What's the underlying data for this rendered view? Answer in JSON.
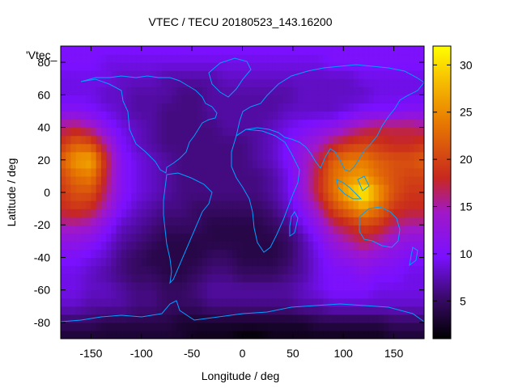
{
  "chart_data": {
    "type": "heatmap",
    "title": "VTEC / TECU 20180523_143.16200",
    "xlabel": "Longitude / deg",
    "ylabel": "Latitude / deg",
    "series_key": "'Vtec_",
    "xlim": [
      -180,
      180
    ],
    "ylim": [
      -90,
      90
    ],
    "zlim": [
      1,
      32
    ],
    "x_ticks": [
      -150,
      -100,
      -50,
      0,
      50,
      100,
      150
    ],
    "y_ticks": [
      -80,
      -60,
      -40,
      -20,
      0,
      20,
      40,
      60,
      80
    ],
    "colorbar_ticks": [
      5,
      10,
      15,
      20,
      25,
      30
    ],
    "x": [
      -180,
      -165,
      -150,
      -135,
      -120,
      -105,
      -90,
      -75,
      -60,
      -45,
      -30,
      -15,
      0,
      15,
      30,
      45,
      60,
      75,
      90,
      105,
      120,
      135,
      150,
      165,
      180
    ],
    "y": [
      -90,
      -80,
      -70,
      -60,
      -50,
      -40,
      -30,
      -20,
      -10,
      0,
      10,
      20,
      30,
      40,
      50,
      60,
      70,
      80,
      90
    ],
    "z": [
      [
        3,
        3,
        3,
        3,
        3,
        3,
        3,
        3,
        3,
        2,
        2,
        2,
        1,
        1,
        2,
        2,
        2,
        2,
        2,
        2,
        2,
        2,
        3,
        3,
        3
      ],
      [
        5,
        5,
        5,
        4,
        4,
        4,
        4,
        4,
        3,
        3,
        3,
        3,
        3,
        3,
        3,
        3,
        3,
        4,
        4,
        4,
        4,
        4,
        5,
        5,
        5
      ],
      [
        8,
        8,
        7,
        7,
        7,
        6,
        6,
        5,
        5,
        5,
        6,
        6,
        6,
        6,
        6,
        6,
        7,
        7,
        8,
        8,
        8,
        8,
        8,
        8,
        8
      ],
      [
        9,
        9,
        8,
        8,
        7,
        6,
        6,
        5,
        5,
        6,
        7,
        7,
        7,
        7,
        7,
        7,
        8,
        9,
        10,
        10,
        10,
        9,
        9,
        9,
        9
      ],
      [
        9,
        9,
        8,
        7,
        6,
        5,
        5,
        4,
        4,
        5,
        6,
        6,
        5,
        5,
        5,
        6,
        7,
        9,
        10,
        10,
        11,
        10,
        10,
        9,
        9
      ],
      [
        10,
        10,
        9,
        8,
        6,
        5,
        4,
        4,
        4,
        4,
        5,
        5,
        4,
        4,
        4,
        5,
        7,
        9,
        11,
        12,
        13,
        12,
        11,
        10,
        10
      ],
      [
        12,
        12,
        11,
        9,
        7,
        6,
        5,
        4,
        4,
        4,
        4,
        4,
        4,
        4,
        4,
        5,
        7,
        10,
        13,
        15,
        17,
        15,
        13,
        12,
        12
      ],
      [
        15,
        15,
        14,
        11,
        8,
        7,
        6,
        5,
        5,
        5,
        4,
        4,
        4,
        4,
        5,
        6,
        9,
        12,
        16,
        18,
        20,
        19,
        16,
        15,
        15
      ],
      [
        18,
        19,
        18,
        14,
        10,
        8,
        7,
        6,
        6,
        5,
        5,
        5,
        5,
        5,
        6,
        8,
        11,
        15,
        20,
        23,
        26,
        23,
        19,
        18,
        18
      ],
      [
        19,
        21,
        21,
        16,
        11,
        9,
        8,
        7,
        6,
        6,
        6,
        6,
        6,
        6,
        7,
        9,
        13,
        18,
        23,
        28,
        32,
        26,
        21,
        19,
        19
      ],
      [
        20,
        23,
        24,
        17,
        11,
        9,
        8,
        7,
        6,
        6,
        6,
        6,
        6,
        6,
        7,
        9,
        13,
        18,
        23,
        25,
        26,
        23,
        21,
        20,
        20
      ],
      [
        22,
        26,
        27,
        18,
        11,
        9,
        8,
        7,
        6,
        6,
        6,
        6,
        6,
        7,
        8,
        10,
        13,
        17,
        22,
        24,
        24,
        22,
        21,
        21,
        22
      ],
      [
        19,
        22,
        21,
        15,
        10,
        8,
        7,
        6,
        6,
        6,
        6,
        6,
        6,
        7,
        8,
        10,
        12,
        14,
        17,
        19,
        20,
        19,
        18,
        18,
        19
      ],
      [
        16,
        17,
        15,
        11,
        9,
        8,
        7,
        6,
        6,
        6,
        6,
        7,
        7,
        7,
        8,
        9,
        10,
        11,
        12,
        14,
        16,
        17,
        17,
        17,
        16
      ],
      [
        11,
        11,
        10,
        9,
        8,
        7,
        7,
        6,
        6,
        6,
        7,
        7,
        7,
        7,
        7,
        8,
        8,
        8,
        8,
        9,
        10,
        10,
        10,
        11,
        11
      ],
      [
        9,
        9,
        9,
        8,
        8,
        7,
        7,
        7,
        6,
        6,
        7,
        7,
        7,
        7,
        7,
        7,
        8,
        8,
        8,
        8,
        8,
        9,
        9,
        9,
        9
      ],
      [
        9,
        9,
        9,
        9,
        8,
        8,
        8,
        7,
        7,
        7,
        7,
        8,
        8,
        8,
        8,
        8,
        8,
        8,
        8,
        8,
        9,
        9,
        9,
        9,
        9
      ],
      [
        10,
        10,
        10,
        9,
        9,
        9,
        9,
        9,
        9,
        9,
        9,
        9,
        9,
        9,
        9,
        9,
        9,
        9,
        10,
        10,
        10,
        10,
        10,
        10,
        10
      ],
      [
        10,
        10,
        10,
        10,
        10,
        10,
        10,
        10,
        10,
        10,
        10,
        10,
        10,
        10,
        10,
        10,
        10,
        10,
        10,
        10,
        10,
        10,
        10,
        10,
        10
      ]
    ],
    "colormap": "black-purple-red-orange-yellow",
    "overlay": "coastlines",
    "overlay_color": "#00a0ff",
    "grid": false
  }
}
